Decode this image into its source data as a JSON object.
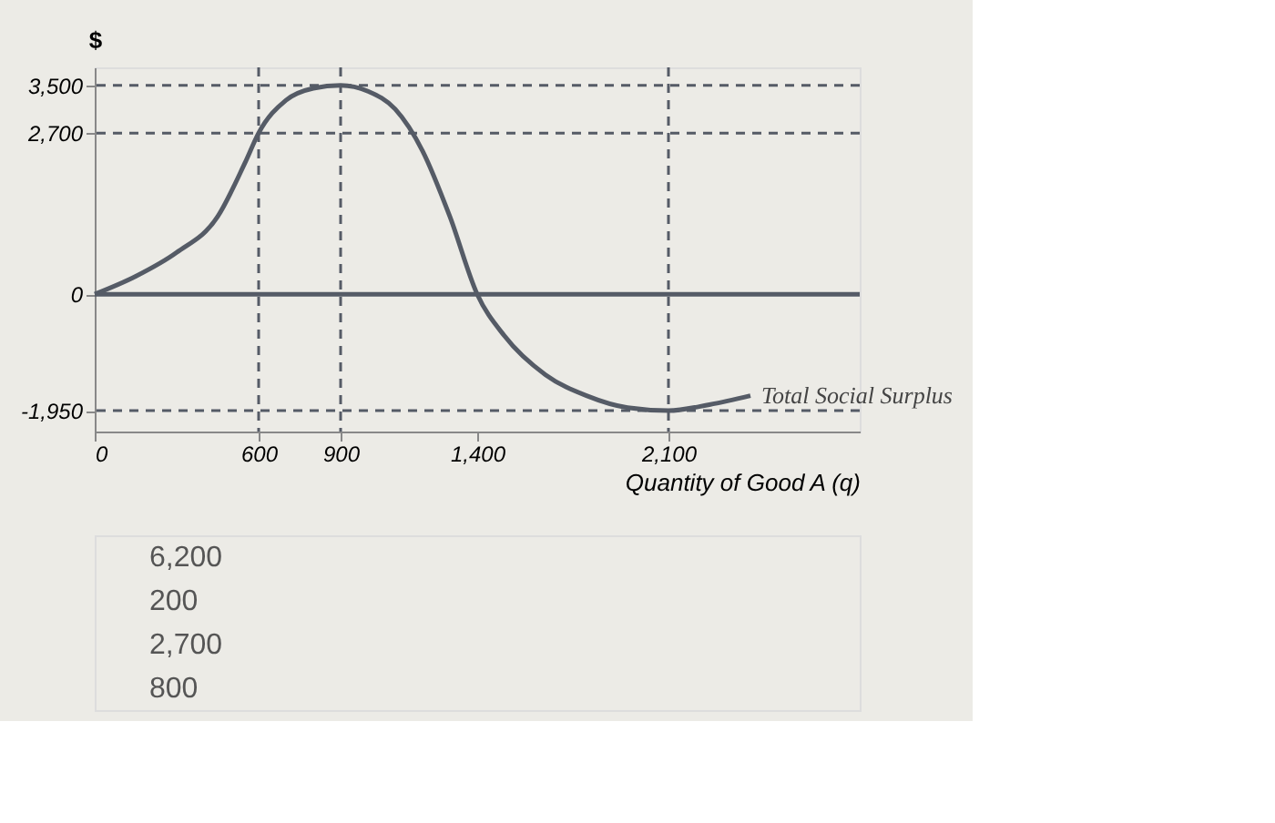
{
  "chart_data": {
    "type": "line",
    "ylabel": "$",
    "xlabel": "Quantity of Good A (q)",
    "x": [
      0,
      150,
      300,
      450,
      550,
      600,
      700,
      800,
      900,
      1000,
      1100,
      1200,
      1300,
      1400,
      1500,
      1650,
      1800,
      1950,
      2100,
      2250,
      2400
    ],
    "series": [
      {
        "name": "Total Social Surplus",
        "color": "#555b66",
        "values": [
          0,
          300,
          700,
          1300,
          2200,
          2700,
          3250,
          3450,
          3500,
          3400,
          3100,
          2400,
          1300,
          0,
          -700,
          -1350,
          -1700,
          -1900,
          -1950,
          -1850,
          -1700
        ]
      }
    ],
    "xlim": [
      0,
      2800
    ],
    "xticks": [
      0,
      600,
      900,
      {
        "value": 1400,
        "label": "1,400"
      },
      {
        "value": 2100,
        "label": "2,100"
      }
    ],
    "ylim": [
      -2300,
      3800
    ],
    "yticks": [
      {
        "value": -1950,
        "label": "-1,950"
      },
      0,
      {
        "value": 2700,
        "label": "2,700"
      },
      {
        "value": 3500,
        "label": "3,500"
      }
    ],
    "ref_lines": [
      {
        "axis": "y",
        "value": 0,
        "line_style": "solid",
        "color": "#555b66"
      },
      {
        "axis": "y",
        "value": 3500,
        "line_style": "dashed",
        "color": "#555b66"
      },
      {
        "axis": "y",
        "value": 2700,
        "line_style": "dashed",
        "color": "#555b66"
      },
      {
        "axis": "y",
        "value": -1950,
        "line_style": "dashed",
        "color": "#555b66"
      },
      {
        "axis": "x",
        "value": 600,
        "line_style": "dashed",
        "color": "#555b66"
      },
      {
        "axis": "x",
        "value": 900,
        "line_style": "dashed",
        "color": "#555b66"
      },
      {
        "axis": "x",
        "value": 2100,
        "line_style": "dashed",
        "color": "#555b66"
      }
    ],
    "annotations": [
      "6,200",
      "200",
      "2,700",
      "800"
    ],
    "grid": false,
    "marker": "none",
    "line_style": "solid"
  }
}
